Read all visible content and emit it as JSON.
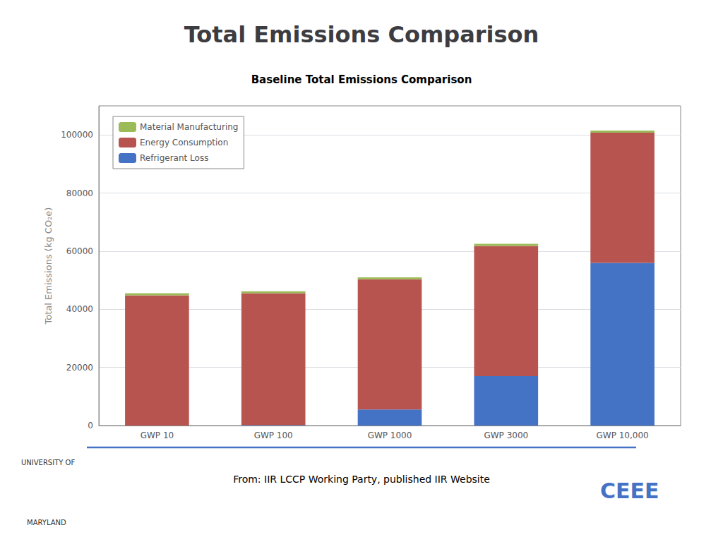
{
  "chart_data": {
    "type": "bar",
    "title": "Total Emissions Comparison",
    "subtitle": "Baseline Total Emissions Comparison",
    "categories": [
      "GWP 10",
      "GWP 100",
      "GWP 1000",
      "GWP 3000",
      "GWP 10,000"
    ],
    "series": [
      {
        "name": "Material Manufacturing",
        "color": "#9BBB59",
        "values": [
          700,
          700,
          700,
          700,
          700
        ]
      },
      {
        "name": "Energy Consumption",
        "color": "#B85450",
        "values": [
          44800,
          45300,
          44800,
          44800,
          44800
        ]
      },
      {
        "name": "Refrigerant Loss",
        "color": "#4472C4",
        "values": [
          0,
          200,
          5500,
          17000,
          56000
        ]
      }
    ],
    "stacked": true,
    "ylabel": "Total Emissions (kg CO₂e)",
    "ylim": [
      0,
      110000
    ],
    "yticks": [
      0,
      20000,
      40000,
      60000,
      80000,
      100000
    ],
    "grid": true,
    "legend": "upper left",
    "annotations": [
      "From: IIR LCCP Working Party, published IIR Website",
      "UNIVERSITY OF",
      "MARYLAND",
      "CEEE"
    ]
  }
}
